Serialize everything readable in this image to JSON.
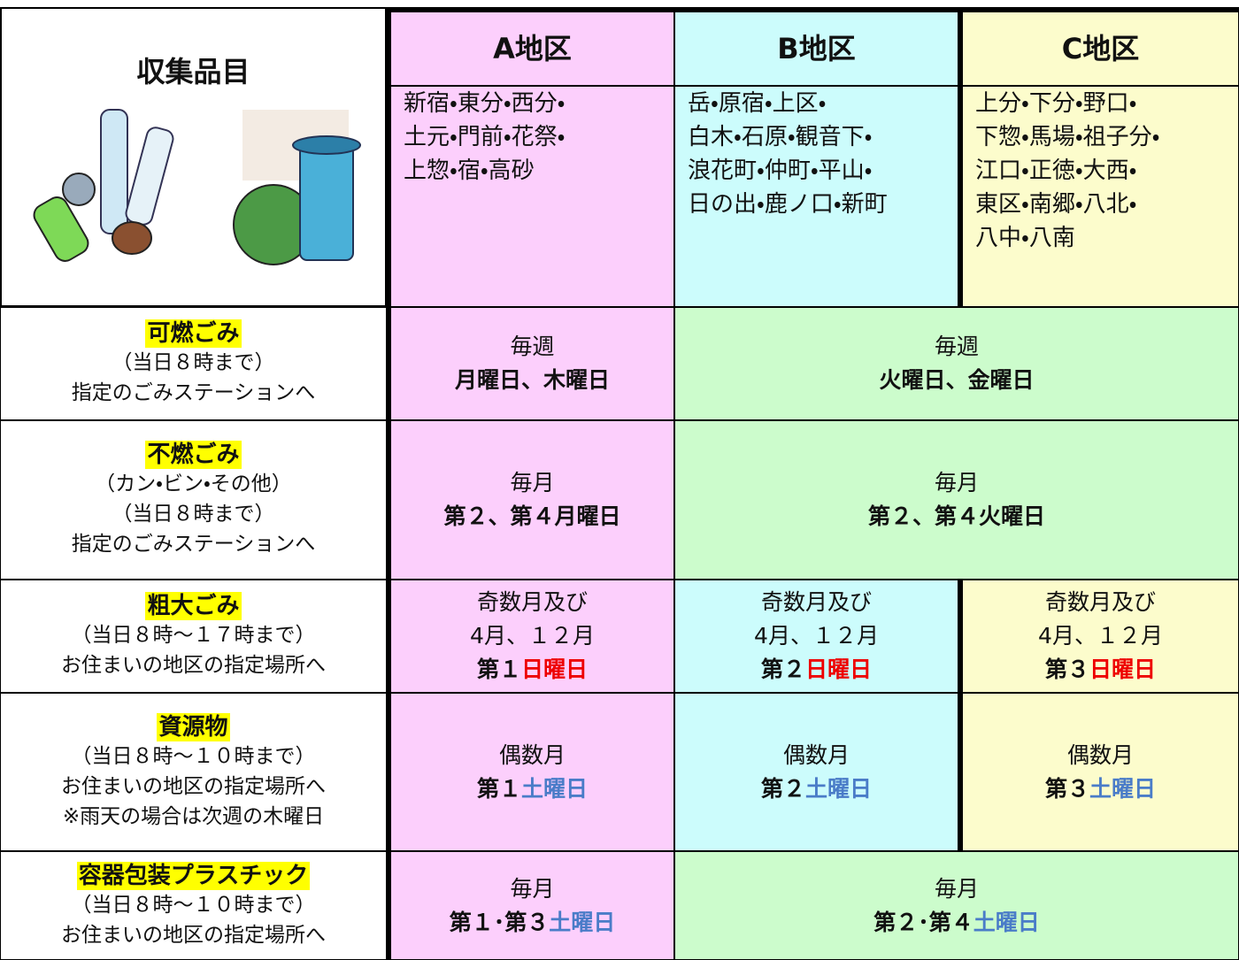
{
  "header": {
    "item_label": "収集品目",
    "districts": [
      {
        "name": "A地区",
        "areas": [
          "新宿・東分・西分・",
          "土元・門前・花祭・",
          "上惣・宿・高砂"
        ]
      },
      {
        "name": "B地区",
        "areas": [
          "岳・原宿・上区・",
          "白木・石原・観音下・",
          "浪花町・仲町・平山・",
          "日の出・鹿ノ口・新町"
        ]
      },
      {
        "name": "C地区",
        "areas": [
          "上分・下分・野口・",
          "下惣・馬場・祖子分・",
          "江口・正徳・大西・",
          "東区・南郷・八北・",
          "八中・八南"
        ]
      }
    ]
  },
  "fills": [
    "#fccffc",
    "#ccfcfc",
    "#fcfccc"
  ],
  "merged_fill": "#ccfccc",
  "item_highlight": "#ffff00",
  "rows": [
    {
      "item": {
        "name": "可燃ごみ",
        "notes": [
          "（当日８時まで）",
          "指定のごみステーションへ"
        ]
      },
      "cells": [
        {
          "lines": [
            "毎週"
          ],
          "bold": "月曜日、木曜日"
        },
        {
          "lines": [
            "毎週"
          ],
          "bold": "火曜日、金曜日"
        }
      ]
    },
    {
      "item": {
        "name": "不燃ごみ",
        "notes": [
          "（カン・ビン・その他）",
          "（当日８時まで）",
          "指定のごみステーションへ"
        ]
      },
      "cells": [
        {
          "lines": [
            "毎月"
          ],
          "bold": "第２、第４月曜日"
        },
        {
          "lines": [
            "毎月"
          ],
          "bold": "第２、第４火曜日"
        }
      ]
    },
    {
      "item": {
        "name": "粗大ごみ",
        "notes": [
          "（当日８時～１７時まで）",
          "お住まいの地区の指定場所へ"
        ]
      },
      "cells": [
        {
          "lines": [
            "奇数月及び",
            "4月、１２月"
          ],
          "bold": "第１",
          "highlight": "日曜日",
          "highlight_color": "#ee0000"
        },
        {
          "lines": [
            "奇数月及び",
            "4月、１２月"
          ],
          "bold": "第２",
          "highlight": "日曜日",
          "highlight_color": "#ee0000"
        },
        {
          "lines": [
            "奇数月及び",
            "4月、１２月"
          ],
          "bold": "第３",
          "highlight": "日曜日",
          "highlight_color": "#ee0000"
        }
      ]
    },
    {
      "item": {
        "name": "資源物",
        "notes": [
          "（当日８時～１０時まで）",
          "お住まいの地区の指定場所へ",
          "※雨天の場合は次週の木曜日"
        ]
      },
      "cells": [
        {
          "lines": [
            "偶数月"
          ],
          "bold": "第１",
          "highlight": "土曜日",
          "highlight_color": "#4a7cc8"
        },
        {
          "lines": [
            "偶数月"
          ],
          "bold": "第２",
          "highlight": "土曜日",
          "highlight_color": "#4a7cc8"
        },
        {
          "lines": [
            "偶数月"
          ],
          "bold": "第３",
          "highlight": "土曜日",
          "highlight_color": "#4a7cc8"
        }
      ]
    },
    {
      "item": {
        "name": "容器包装プラスチック",
        "notes": [
          "（当日８時～１０時まで）",
          "お住まいの地区の指定場所へ"
        ]
      },
      "cells": [
        {
          "lines": [
            "毎月"
          ],
          "bold": "第１･第３",
          "highlight": "土曜日",
          "highlight_color": "#4a7cc8"
        },
        {
          "lines": [
            "毎月"
          ],
          "bold": "第２･第４",
          "highlight": "土曜日",
          "highlight_color": "#4a7cc8"
        }
      ]
    }
  ]
}
